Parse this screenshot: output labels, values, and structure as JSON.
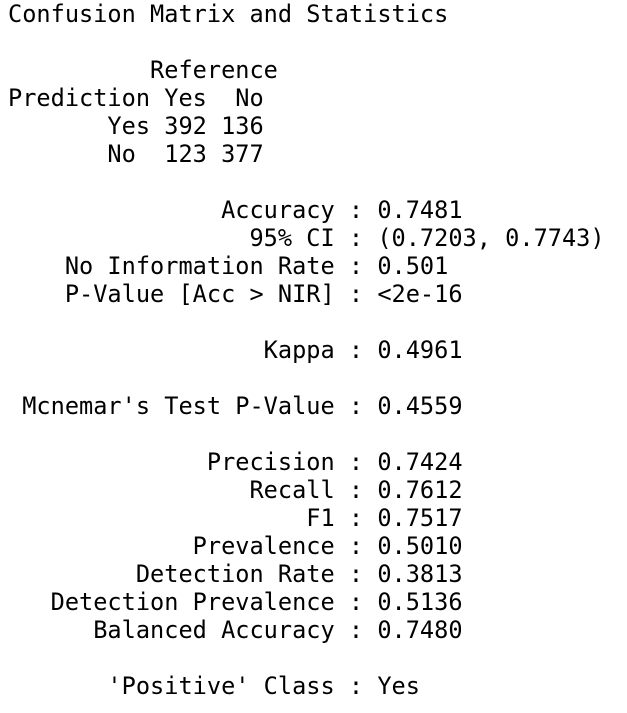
{
  "title": "Confusion Matrix and Statistics",
  "matrix": {
    "reference_header": "          Reference",
    "header_row": "Prediction Yes  No",
    "rows": [
      "       Yes 392 136",
      "       No  123 377"
    ]
  },
  "overall": {
    "accuracy": "               Accuracy : 0.7481",
    "ci": "                 95% CI : (0.7203, 0.7743)",
    "nir": "    No Information Rate : 0.501",
    "pvalue": "    P-Value [Acc > NIR] : <2e-16",
    "kappa": "                  Kappa : 0.4961",
    "mcnemar": " Mcnemar's Test P-Value : 0.4559"
  },
  "by_class": {
    "precision": "              Precision : 0.7424",
    "recall": "                 Recall : 0.7612",
    "f1": "                     F1 : 0.7517",
    "prevalence": "             Prevalence : 0.5010",
    "detection_rate": "         Detection Rate : 0.3813",
    "detection_prevalence": "   Detection Prevalence : 0.5136",
    "balanced_accuracy": "      Balanced Accuracy : 0.7480"
  },
  "positive_class": "       'Positive' Class : Yes"
}
